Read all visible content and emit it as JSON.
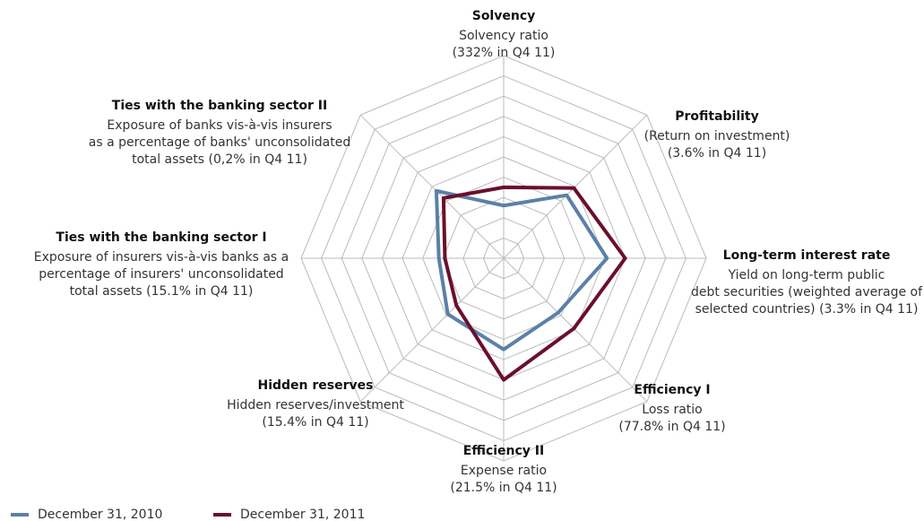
{
  "chart_data": {
    "type": "radar",
    "categories": [
      "Solvency",
      "Profitability",
      "Long-term interest rate",
      "Efficiency I",
      "Efficiency II",
      "Hidden reserves",
      "Ties with the banking sector I",
      "Ties with the banking sector II"
    ],
    "descriptions": [
      [
        "Solvency ratio",
        "(332% in Q4 11)"
      ],
      [
        "(Return on investment)",
        "(3.6% in Q4 11)"
      ],
      [
        "Yield on long-term public",
        "debt securities (weighted average of",
        "selected countries) (3.3% in Q4 11)"
      ],
      [
        "Loss ratio",
        "(77.8% in Q4 11)"
      ],
      [
        "Expense ratio",
        "(21.5% in Q4 11)"
      ],
      [
        "Hidden reserves/investment",
        "(15.4% in Q4 11)"
      ],
      [
        "Exposure of insurers vis-à-vis banks as a",
        "percentage of insurers' unconsolidated",
        "total assets (15.1% in Q4 11)"
      ],
      [
        "Exposure of banks vis-à-vis insurers",
        "as a percentage of banks' unconsolidated",
        "total assets (0,2% in Q4 11)"
      ]
    ],
    "series": [
      {
        "name": "December 31, 2010",
        "color": "#5b80a8",
        "values": [
          2.6,
          4.4,
          5.1,
          3.8,
          4.5,
          3.9,
          3.2,
          4.7
        ]
      },
      {
        "name": "December 31, 2011",
        "color": "#6b0f2b",
        "values": [
          3.5,
          4.9,
          6.0,
          4.9,
          6.0,
          3.3,
          2.9,
          4.2
        ]
      }
    ],
    "rlim": [
      0,
      10
    ],
    "rticks": [
      1,
      2,
      3,
      4,
      5,
      6,
      7,
      8,
      9,
      10
    ],
    "grid": true
  }
}
